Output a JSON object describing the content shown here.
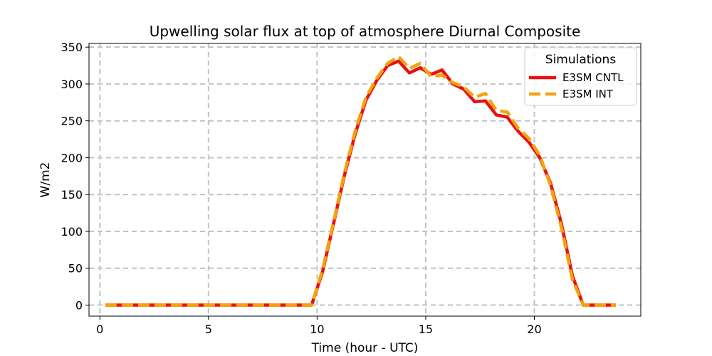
{
  "chart_data": {
    "type": "line",
    "title": "Upwelling solar flux at top of atmosphere Diurnal Composite",
    "xlabel": "Time (hour - UTC)",
    "ylabel": "W/m2",
    "xlim": [
      -0.5,
      24.9
    ],
    "ylim": [
      -15,
      355
    ],
    "xticks": [
      0,
      5,
      10,
      15,
      20
    ],
    "yticks": [
      0,
      50,
      100,
      150,
      200,
      250,
      300,
      350
    ],
    "grid": true,
    "legend_title": "Simulations",
    "legend_position": "top-right",
    "series": [
      {
        "name": "E3SM CNTL",
        "color": "#e8110f",
        "style": "solid",
        "x": [
          0.25,
          0.75,
          1.25,
          1.75,
          2.25,
          2.75,
          3.25,
          3.75,
          4.25,
          4.75,
          5.25,
          5.75,
          6.25,
          6.75,
          7.25,
          7.75,
          8.25,
          8.75,
          9.25,
          9.75,
          10.25,
          10.75,
          11.25,
          11.75,
          12.25,
          12.75,
          13.25,
          13.75,
          14.25,
          14.75,
          15.25,
          15.75,
          16.25,
          16.75,
          17.25,
          17.75,
          18.25,
          18.75,
          19.25,
          19.75,
          20.25,
          20.75,
          21.25,
          21.75,
          22.25,
          22.75,
          23.25,
          23.75
        ],
        "values": [
          0,
          0,
          0,
          0,
          0,
          0,
          0,
          0,
          0,
          0,
          0,
          0,
          0,
          0,
          0,
          0,
          0,
          0,
          0,
          0,
          45,
          110,
          175,
          232,
          278,
          305,
          325,
          331,
          315,
          322,
          313,
          319,
          300,
          293,
          276,
          277,
          258,
          255,
          236,
          221,
          200,
          165,
          110,
          40,
          0,
          0,
          0,
          0
        ]
      },
      {
        "name": "E3SM INT",
        "color": "#f5a20e",
        "style": "dashed",
        "x": [
          0.25,
          0.75,
          1.25,
          1.75,
          2.25,
          2.75,
          3.25,
          3.75,
          4.25,
          4.75,
          5.25,
          5.75,
          6.25,
          6.75,
          7.25,
          7.75,
          8.25,
          8.75,
          9.25,
          9.75,
          10.25,
          10.75,
          11.25,
          11.75,
          12.25,
          12.75,
          13.25,
          13.75,
          14.25,
          14.75,
          15.25,
          15.75,
          16.25,
          16.75,
          17.25,
          17.75,
          18.25,
          18.75,
          19.25,
          19.75,
          20.25,
          20.75,
          21.25,
          21.75,
          22.25,
          22.75,
          23.25,
          23.75
        ],
        "values": [
          0,
          0,
          0,
          0,
          0,
          0,
          0,
          0,
          0,
          0,
          0,
          0,
          0,
          0,
          0,
          0,
          0,
          0,
          0,
          0,
          48,
          112,
          178,
          236,
          282,
          308,
          328,
          337,
          321,
          328,
          310,
          312,
          302,
          296,
          282,
          287,
          264,
          262,
          240,
          226,
          203,
          162,
          105,
          35,
          0,
          0,
          0,
          0
        ]
      }
    ]
  }
}
